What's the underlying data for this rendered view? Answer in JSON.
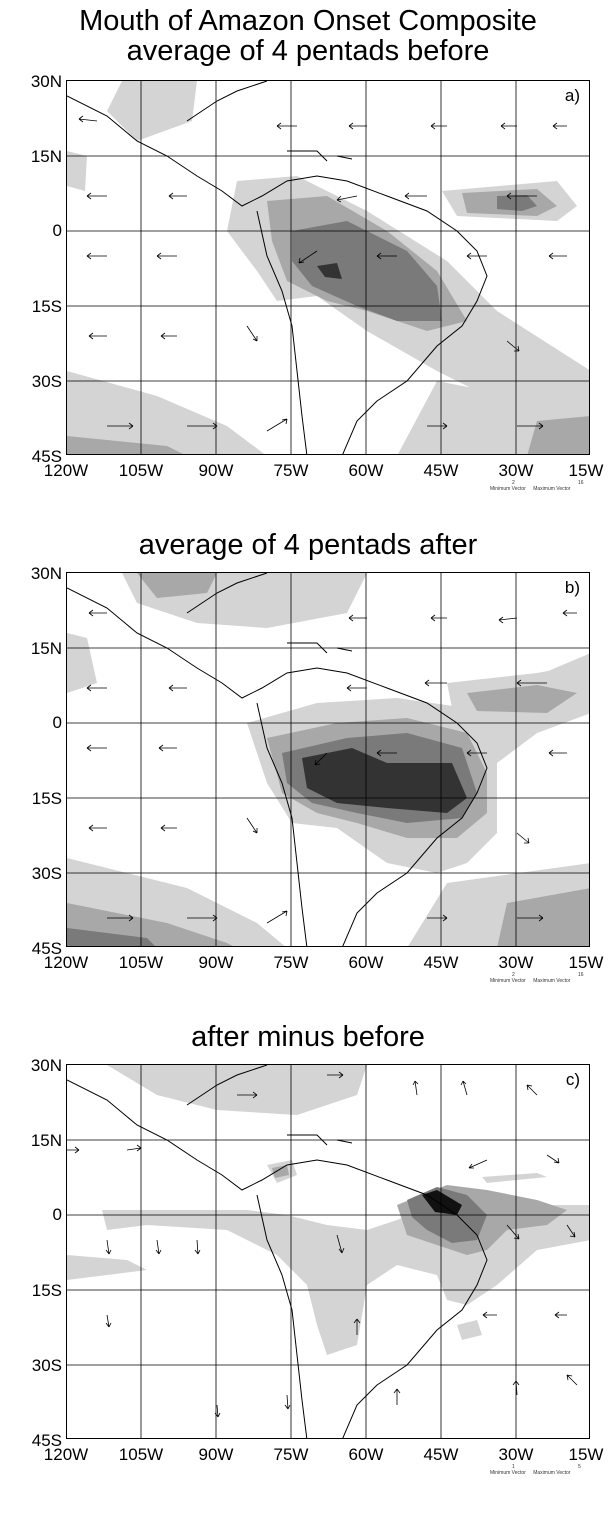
{
  "titles": {
    "main": "Mouth of Amazon Onset Composite",
    "a": "average of 4 pentads before",
    "b": "average of 4 pentads after",
    "c": "after minus before"
  },
  "panels": [
    {
      "letter": "a)",
      "key": {
        "min_label": "Minimum Vector",
        "max_label": "Maximum Vector",
        "min_value": "2",
        "max_value": "16"
      }
    },
    {
      "letter": "b)",
      "key": {
        "min_label": "Minimum Vector",
        "max_label": "Maximum Vector",
        "min_value": "2",
        "max_value": "16"
      }
    },
    {
      "letter": "c)",
      "key": {
        "min_label": "Minimum Vector",
        "max_label": "Maximum Vector",
        "min_value": "1",
        "max_value": "5"
      }
    }
  ],
  "axes": {
    "lat_labels": [
      "30N",
      "15N",
      "0",
      "15S",
      "30S",
      "45S"
    ],
    "lon_labels": [
      "120W",
      "105W",
      "90W",
      "75W",
      "60W",
      "45W",
      "30W",
      "15W"
    ]
  },
  "colors": {
    "shade_light": "#d4d4d4",
    "shade_mid": "#a8a8a8",
    "shade_dark": "#7a7a7a",
    "shade_darker": "#4a4a4a",
    "shade_black": "#111111"
  }
}
